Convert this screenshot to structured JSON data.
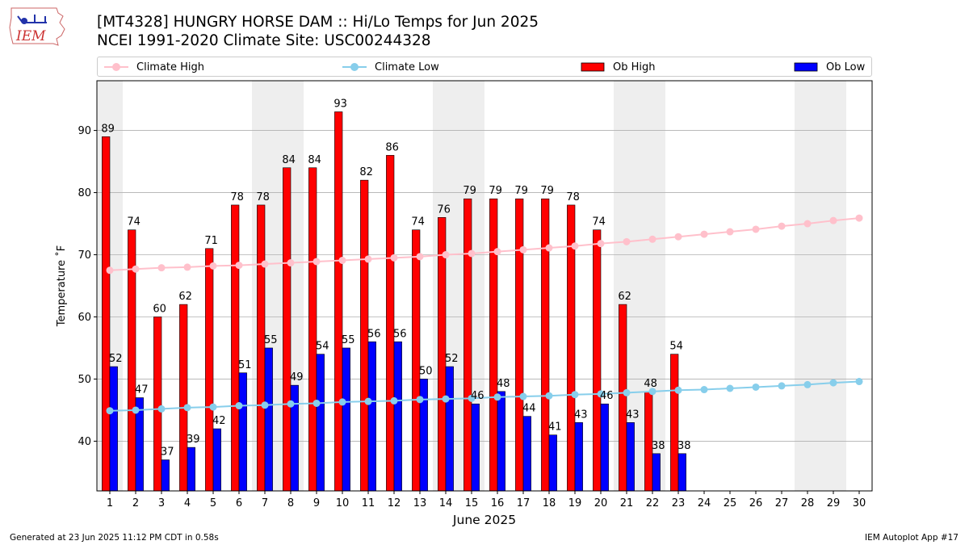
{
  "logo": {
    "text": "IEM"
  },
  "header": {
    "title": "[MT4328] HUNGRY HORSE DAM :: Hi/Lo Temps for Jun 2025",
    "subtitle": "NCEI 1991-2020 Climate Site: USC00244328"
  },
  "legend": {
    "items": [
      {
        "label": "Climate High",
        "color": "#ffc0cb",
        "kind": "line"
      },
      {
        "label": "Climate Low",
        "color": "#87ceeb",
        "kind": "line"
      },
      {
        "label": "Ob High",
        "color": "#ff0000",
        "kind": "bar"
      },
      {
        "label": "Ob Low",
        "color": "#0000ff",
        "kind": "bar"
      }
    ]
  },
  "footer": {
    "generated": "Generated at 23 Jun 2025 11:12 PM CDT in 0.58s",
    "app": "IEM Autoplot App #17"
  },
  "chart_data": {
    "type": "bar",
    "xlabel": "June 2025",
    "ylabel": "Temperature ˚F",
    "ylim": [
      32,
      98
    ],
    "xlim": [
      0.5,
      30.5
    ],
    "yticks": [
      40,
      50,
      60,
      70,
      80,
      90
    ],
    "grid": "horizontal",
    "weekend_shading_days": [
      1,
      7,
      8,
      14,
      15,
      21,
      22,
      28,
      29
    ],
    "shading_color": "#eeeeee",
    "days": [
      1,
      2,
      3,
      4,
      5,
      6,
      7,
      8,
      9,
      10,
      11,
      12,
      13,
      14,
      15,
      16,
      17,
      18,
      19,
      20,
      21,
      22,
      23,
      24,
      25,
      26,
      27,
      28,
      29,
      30
    ],
    "series": [
      {
        "name": "Ob High",
        "kind": "bar",
        "color": "#ff0000",
        "values": [
          89,
          74,
          60,
          62,
          71,
          78,
          78,
          84,
          84,
          93,
          82,
          86,
          74,
          76,
          79,
          79,
          79,
          79,
          78,
          74,
          62,
          48,
          54
        ]
      },
      {
        "name": "Ob Low",
        "kind": "bar",
        "color": "#0000ff",
        "values": [
          52,
          47,
          37,
          39,
          42,
          51,
          55,
          49,
          54,
          55,
          56,
          56,
          50,
          52,
          46,
          48,
          44,
          41,
          43,
          46,
          43,
          38,
          38
        ]
      },
      {
        "name": "Climate High",
        "kind": "line",
        "color": "#ffc0cb",
        "values": [
          67.5,
          67.7,
          67.9,
          68.0,
          68.2,
          68.3,
          68.5,
          68.7,
          68.9,
          69.1,
          69.3,
          69.5,
          69.7,
          70.0,
          70.2,
          70.5,
          70.8,
          71.1,
          71.4,
          71.8,
          72.1,
          72.5,
          72.9,
          73.3,
          73.7,
          74.1,
          74.6,
          75.0,
          75.5,
          75.9
        ]
      },
      {
        "name": "Climate Low",
        "kind": "line",
        "color": "#87ceeb",
        "values": [
          44.9,
          45.0,
          45.2,
          45.4,
          45.5,
          45.7,
          45.8,
          46.0,
          46.1,
          46.3,
          46.4,
          46.5,
          46.7,
          46.8,
          46.9,
          47.1,
          47.2,
          47.3,
          47.5,
          47.6,
          47.8,
          48.0,
          48.2,
          48.3,
          48.5,
          48.7,
          48.9,
          49.1,
          49.4,
          49.6
        ]
      }
    ]
  }
}
